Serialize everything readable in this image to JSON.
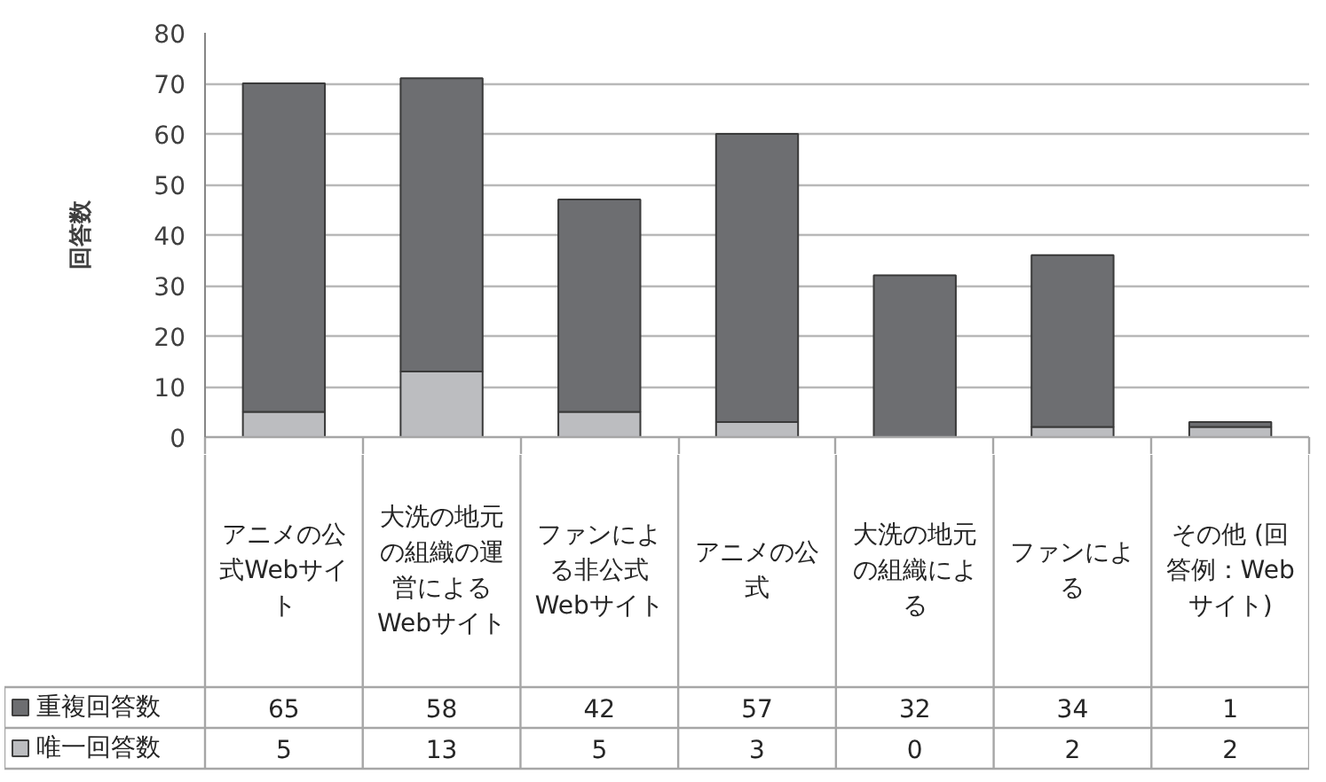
{
  "chart_data": {
    "type": "bar",
    "stacked": true,
    "categories": [
      "アニメの公式Webサイト",
      "大洗の地元の組織の運営によるWebサイト",
      "ファンによる非公式Webサイト",
      "アニメの公式",
      "大洗の地元の組織による",
      "ファンによる",
      "その他 (回答例：Webサイト)"
    ],
    "series": [
      {
        "name": "唯一回答数",
        "color": "#bcbdc0",
        "values": [
          5,
          13,
          5,
          3,
          0,
          2,
          2
        ]
      },
      {
        "name": "重複回答数",
        "color": "#6d6e71",
        "values": [
          65,
          58,
          42,
          57,
          32,
          34,
          1
        ]
      }
    ],
    "ylabel": "回答数",
    "ylim": [
      0,
      80
    ],
    "yticks": [
      0,
      10,
      20,
      30,
      40,
      50,
      60,
      70,
      80
    ],
    "grid": "y",
    "legend": "bottom",
    "data_labels": true
  }
}
